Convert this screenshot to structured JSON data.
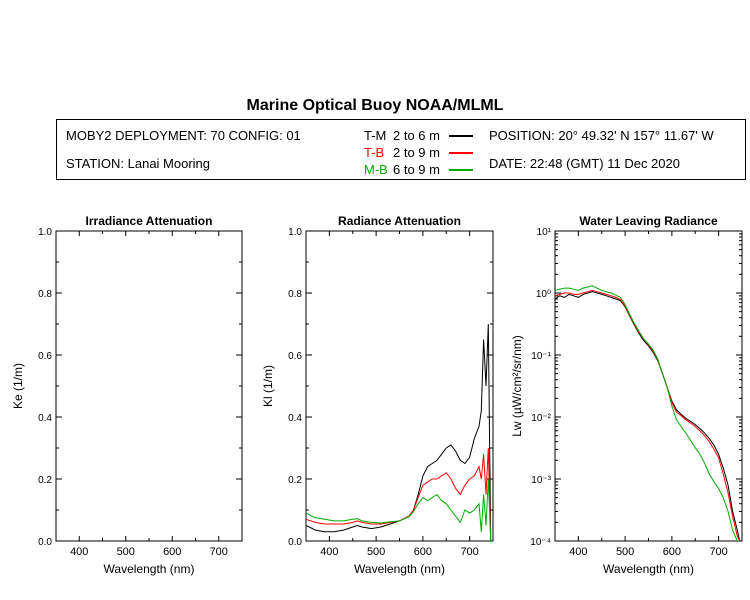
{
  "title": "Marine Optical Buoy NOAA/MLML",
  "header": {
    "deployment": "MOBY2 DEPLOYMENT: 70 CONFIG: 01",
    "station": "STATION: Lanai Mooring",
    "position": "POSITION: 20° 49.32' N   157° 11.67' W",
    "date": "DATE: 22:48 (GMT) 11 Dec 2020",
    "legend": [
      {
        "key": "T-M",
        "range": "2 to 6  m",
        "color": "#000000"
      },
      {
        "key": "T-B",
        "range": "2 to 9  m",
        "color": "#ff0000"
      },
      {
        "key": "M-B",
        "range": "6 to 9  m",
        "color": "#00aa00"
      }
    ]
  },
  "chart_data": [
    {
      "type": "line",
      "title": "Irradiance Attenuation",
      "xlabel": "Wavelength (nm)",
      "ylabel": "Ke  (1/m)",
      "xlim": [
        350,
        750
      ],
      "ylim": [
        0,
        1
      ],
      "xticks": [
        "400",
        "500",
        "600",
        "700"
      ],
      "yticks": [
        "0.0",
        "0.2",
        "0.4",
        "0.6",
        "0.8",
        "1.0"
      ],
      "series": []
    },
    {
      "type": "line",
      "title": "Radiance Attenuation",
      "xlabel": "Wavelength (nm)",
      "ylabel": "Kl  (1/m)",
      "xlim": [
        350,
        750
      ],
      "ylim": [
        0,
        1
      ],
      "xticks": [
        "400",
        "500",
        "600",
        "700"
      ],
      "yticks": [
        "0.0",
        "0.2",
        "0.4",
        "0.6",
        "0.8",
        "1.0"
      ],
      "series": [
        {
          "name": "T-M",
          "color": "#000000",
          "x": [
            350,
            370,
            390,
            410,
            430,
            450,
            460,
            470,
            490,
            510,
            530,
            550,
            570,
            580,
            590,
            600,
            610,
            620,
            630,
            640,
            650,
            660,
            670,
            680,
            690,
            700,
            710,
            720,
            725,
            730,
            735,
            740,
            745
          ],
          "y": [
            0.05,
            0.035,
            0.03,
            0.03,
            0.035,
            0.045,
            0.05,
            0.045,
            0.04,
            0.045,
            0.055,
            0.065,
            0.08,
            0.1,
            0.15,
            0.21,
            0.24,
            0.25,
            0.26,
            0.28,
            0.3,
            0.31,
            0.29,
            0.26,
            0.25,
            0.27,
            0.33,
            0.37,
            0.42,
            0.65,
            0.5,
            0.7,
            0.0
          ]
        },
        {
          "name": "T-B",
          "color": "#ff0000",
          "x": [
            350,
            370,
            390,
            410,
            430,
            450,
            460,
            470,
            490,
            510,
            530,
            550,
            570,
            580,
            590,
            600,
            610,
            620,
            630,
            640,
            650,
            660,
            670,
            680,
            690,
            700,
            710,
            720,
            725,
            730,
            735,
            740,
            745
          ],
          "y": [
            0.07,
            0.06,
            0.055,
            0.055,
            0.055,
            0.06,
            0.065,
            0.06,
            0.055,
            0.055,
            0.06,
            0.065,
            0.08,
            0.1,
            0.14,
            0.18,
            0.19,
            0.2,
            0.2,
            0.21,
            0.22,
            0.2,
            0.17,
            0.15,
            0.18,
            0.2,
            0.21,
            0.24,
            0.2,
            0.28,
            0.15,
            0.3,
            0.0
          ]
        },
        {
          "name": "M-B",
          "color": "#00aa00",
          "x": [
            350,
            370,
            390,
            410,
            430,
            450,
            460,
            470,
            490,
            510,
            530,
            550,
            570,
            580,
            590,
            600,
            610,
            620,
            630,
            640,
            650,
            660,
            670,
            680,
            690,
            700,
            710,
            720,
            725,
            730,
            735,
            740,
            745
          ],
          "y": [
            0.09,
            0.075,
            0.07,
            0.065,
            0.065,
            0.07,
            0.072,
            0.065,
            0.06,
            0.058,
            0.062,
            0.065,
            0.078,
            0.095,
            0.12,
            0.14,
            0.13,
            0.14,
            0.15,
            0.13,
            0.12,
            0.1,
            0.08,
            0.06,
            0.1,
            0.09,
            0.1,
            0.12,
            0.03,
            0.15,
            0.05,
            0.2,
            0.0
          ]
        }
      ]
    },
    {
      "type": "line",
      "title": "Water Leaving Radiance",
      "xlabel": "Wavelength (nm)",
      "ylabel": "Lw  (µW/cm²/sr/nm)",
      "xlim": [
        350,
        750
      ],
      "ylim": [
        0.0001,
        10
      ],
      "yscale": "log",
      "xticks": [
        "400",
        "500",
        "600",
        "700"
      ],
      "yticks": [
        "10⁻⁴",
        "10⁻³",
        "10⁻²",
        "10⁻¹",
        "10⁰",
        "10¹"
      ],
      "series": [
        {
          "name": "T-M",
          "color": "#000000",
          "x": [
            350,
            360,
            370,
            380,
            390,
            400,
            410,
            420,
            430,
            440,
            450,
            460,
            470,
            480,
            490,
            500,
            510,
            520,
            530,
            540,
            550,
            560,
            570,
            580,
            590,
            600,
            610,
            620,
            630,
            640,
            650,
            660,
            670,
            680,
            690,
            700,
            710,
            720,
            730,
            740,
            745
          ],
          "y": [
            0.8,
            0.9,
            0.85,
            0.95,
            0.9,
            0.85,
            0.95,
            1.0,
            1.05,
            1.0,
            0.95,
            0.9,
            0.85,
            0.8,
            0.75,
            0.6,
            0.42,
            0.3,
            0.22,
            0.17,
            0.14,
            0.11,
            0.08,
            0.05,
            0.03,
            0.018,
            0.013,
            0.011,
            0.0095,
            0.0085,
            0.0075,
            0.0065,
            0.0055,
            0.0045,
            0.0035,
            0.0025,
            0.0015,
            0.0008,
            0.0003,
            0.00015,
            0.0001
          ]
        },
        {
          "name": "T-B",
          "color": "#ff0000",
          "x": [
            350,
            360,
            370,
            380,
            390,
            400,
            410,
            420,
            430,
            440,
            450,
            460,
            470,
            480,
            490,
            500,
            510,
            520,
            530,
            540,
            550,
            560,
            570,
            580,
            590,
            600,
            610,
            620,
            630,
            640,
            650,
            660,
            670,
            680,
            690,
            700,
            710,
            720,
            730,
            740,
            745
          ],
          "y": [
            0.9,
            0.95,
            1.0,
            1.0,
            0.95,
            0.95,
            1.0,
            1.05,
            1.1,
            1.05,
            1.0,
            0.95,
            0.9,
            0.85,
            0.78,
            0.62,
            0.43,
            0.31,
            0.23,
            0.18,
            0.145,
            0.115,
            0.083,
            0.05,
            0.03,
            0.017,
            0.012,
            0.0105,
            0.009,
            0.008,
            0.007,
            0.006,
            0.005,
            0.004,
            0.003,
            0.0022,
            0.0012,
            0.0006,
            0.00025,
            0.00012,
            0.0001
          ]
        },
        {
          "name": "M-B",
          "color": "#00aa00",
          "x": [
            350,
            360,
            370,
            380,
            390,
            400,
            410,
            420,
            430,
            440,
            450,
            460,
            470,
            480,
            490,
            500,
            510,
            520,
            530,
            540,
            550,
            560,
            570,
            580,
            590,
            600,
            610,
            620,
            630,
            640,
            650,
            660,
            670,
            680,
            690,
            700,
            710,
            720,
            730,
            740,
            745
          ],
          "y": [
            1.1,
            1.15,
            1.2,
            1.2,
            1.15,
            1.1,
            1.2,
            1.25,
            1.3,
            1.2,
            1.1,
            1.05,
            1.0,
            0.92,
            0.85,
            0.65,
            0.45,
            0.32,
            0.24,
            0.18,
            0.15,
            0.12,
            0.085,
            0.05,
            0.03,
            0.015,
            0.009,
            0.007,
            0.0055,
            0.0042,
            0.0032,
            0.0025,
            0.0018,
            0.0012,
            0.0009,
            0.0007,
            0.0005,
            0.0003,
            0.00015,
            0.0001,
            0.0001
          ]
        }
      ]
    }
  ]
}
